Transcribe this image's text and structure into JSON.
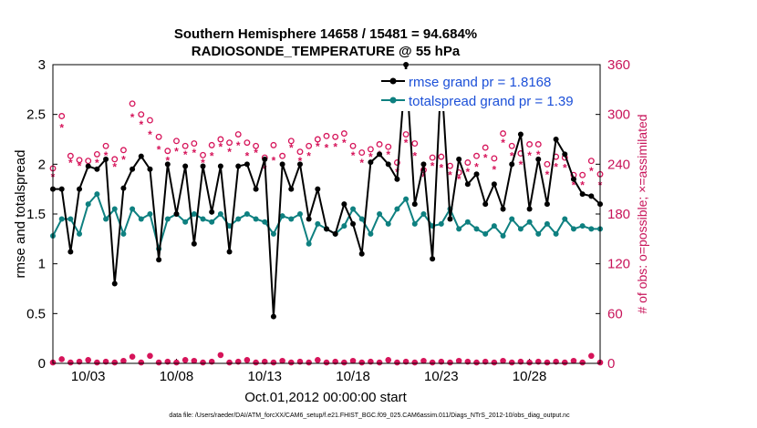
{
  "chart_data": {
    "type": "line",
    "title_line1": "Southern Hemisphere 14658 / 15481 = 94.684%",
    "title_line2": "RADIOSONDE_TEMPERATURE @ 55 hPa",
    "xlabel": "Oct.01,2012 00:00:00 start",
    "ylabel": "rmse and totalspread",
    "ylabel_right": "# of obs: o=possible; ×=assimilated",
    "x_ticks": [
      "10/03",
      "10/08",
      "10/13",
      "10/18",
      "10/23",
      "10/28"
    ],
    "x_tick_days": [
      3,
      8,
      13,
      18,
      23,
      28
    ],
    "xlim": [
      1,
      32
    ],
    "ylim": [
      0,
      3
    ],
    "y_ticks": [
      "0",
      "0.5",
      "1",
      "1.5",
      "2",
      "2.5",
      "3"
    ],
    "y_tick_values": [
      0,
      0.5,
      1,
      1.5,
      2,
      2.5,
      3
    ],
    "ylim_right": [
      0,
      360
    ],
    "y_ticks_right": [
      "0",
      "60",
      "120",
      "180",
      "240",
      "300",
      "360"
    ],
    "y_tick_values_right": [
      0,
      60,
      120,
      180,
      240,
      300,
      360
    ],
    "legend": [
      "rmse grand pr = 1.8168",
      "totalspread grand pr = 1.39"
    ],
    "colors": {
      "rmse": "#000000",
      "spread": "#0e8080",
      "obs": "#d6145a"
    },
    "series": [
      {
        "name": "rmse",
        "x": [
          1.0,
          1.5,
          2.0,
          2.5,
          3.0,
          3.5,
          4.0,
          4.5,
          5.0,
          5.5,
          6.0,
          6.5,
          7.0,
          7.5,
          8.0,
          8.5,
          9.0,
          9.5,
          10.0,
          10.5,
          11.0,
          11.5,
          12.0,
          12.5,
          13.0,
          13.5,
          14.0,
          14.5,
          15.0,
          15.5,
          16.0,
          16.5,
          17.0,
          17.5,
          18.0,
          18.5,
          19.0,
          19.5,
          20.0,
          20.5,
          21.0,
          21.5,
          22.0,
          22.5,
          23.0,
          23.5,
          24.0,
          24.5,
          25.0,
          25.5,
          26.0,
          26.5,
          27.0,
          27.5,
          28.0,
          28.5,
          29.0,
          29.5,
          30.0,
          30.5,
          31.0,
          31.5,
          32.0
        ],
        "values": [
          1.75,
          1.75,
          1.12,
          1.75,
          1.98,
          1.95,
          2.05,
          0.8,
          1.76,
          1.95,
          2.08,
          1.95,
          1.04,
          2.0,
          1.5,
          1.98,
          1.2,
          1.98,
          1.52,
          1.98,
          1.12,
          1.98,
          2.0,
          1.75,
          2.05,
          0.47,
          2.0,
          1.75,
          2.0,
          1.45,
          1.75,
          1.35,
          1.3,
          1.6,
          1.4,
          1.1,
          2.02,
          2.1,
          2.0,
          1.85,
          3.0,
          1.6,
          2.0,
          1.05,
          2.9,
          1.45,
          2.05,
          1.8,
          1.9,
          1.6,
          1.8,
          1.55,
          2.0,
          2.3,
          1.55,
          2.05,
          1.6,
          2.25,
          2.1,
          1.85,
          1.7,
          1.68,
          1.6
        ]
      },
      {
        "name": "totalspread",
        "x": [
          1.0,
          1.5,
          2.0,
          2.5,
          3.0,
          3.5,
          4.0,
          4.5,
          5.0,
          5.5,
          6.0,
          6.5,
          7.0,
          7.5,
          8.0,
          8.5,
          9.0,
          9.5,
          10.0,
          10.5,
          11.0,
          11.5,
          12.0,
          12.5,
          13.0,
          13.5,
          14.0,
          14.5,
          15.0,
          15.5,
          16.0,
          16.5,
          17.0,
          17.5,
          18.0,
          18.5,
          19.0,
          19.5,
          20.0,
          20.5,
          21.0,
          21.5,
          22.0,
          22.5,
          23.0,
          23.5,
          24.0,
          24.5,
          25.0,
          25.5,
          26.0,
          26.5,
          27.0,
          27.5,
          28.0,
          28.5,
          29.0,
          29.5,
          30.0,
          30.5,
          31.0,
          31.5,
          32.0
        ],
        "values": [
          1.28,
          1.45,
          1.45,
          1.3,
          1.6,
          1.7,
          1.45,
          1.55,
          1.3,
          1.55,
          1.45,
          1.5,
          1.15,
          1.45,
          1.5,
          1.42,
          1.5,
          1.45,
          1.42,
          1.5,
          1.38,
          1.45,
          1.5,
          1.45,
          1.42,
          1.3,
          1.48,
          1.45,
          1.5,
          1.2,
          1.4,
          1.35,
          1.3,
          1.38,
          1.55,
          1.45,
          1.3,
          1.5,
          1.4,
          1.55,
          1.65,
          1.4,
          1.5,
          1.38,
          1.4,
          1.55,
          1.35,
          1.42,
          1.35,
          1.3,
          1.38,
          1.28,
          1.45,
          1.35,
          1.42,
          1.3,
          1.4,
          1.3,
          1.45,
          1.35,
          1.38,
          1.35,
          1.35
        ]
      },
      {
        "name": "obs possible",
        "x": [
          1.0,
          1.5,
          2.0,
          2.5,
          3.0,
          3.5,
          4.0,
          4.5,
          5.0,
          5.5,
          6.0,
          6.5,
          7.0,
          7.5,
          8.0,
          8.5,
          9.0,
          9.5,
          10.0,
          10.5,
          11.0,
          11.5,
          12.0,
          12.5,
          13.0,
          13.5,
          14.0,
          14.5,
          15.0,
          15.5,
          16.0,
          16.5,
          17.0,
          17.5,
          18.0,
          18.5,
          19.0,
          19.5,
          20.0,
          20.5,
          21.0,
          21.5,
          22.0,
          22.5,
          23.0,
          23.5,
          24.0,
          24.5,
          25.0,
          25.5,
          26.0,
          26.5,
          27.0,
          27.5,
          28.0,
          28.5,
          29.0,
          29.5,
          30.0,
          30.5,
          31.0,
          31.5,
          32.0
        ],
        "values": [
          235,
          298,
          250,
          245,
          244,
          252,
          262,
          246,
          257,
          313,
          300,
          293,
          273,
          256,
          268,
          262,
          265,
          251,
          263,
          270,
          266,
          276,
          266,
          262,
          248,
          263,
          250,
          268,
          255,
          262,
          270,
          274,
          273,
          277,
          262,
          254,
          258,
          264,
          261,
          242,
          276,
          265,
          233,
          248,
          249,
          238,
          230,
          242,
          250,
          260,
          247,
          277,
          262,
          253,
          264,
          264,
          240,
          249,
          248,
          227,
          227,
          244,
          228
        ]
      },
      {
        "name": "obs assimilated",
        "x": [
          1.0,
          1.5,
          2.0,
          2.5,
          3.0,
          3.5,
          4.0,
          4.5,
          5.0,
          5.5,
          6.0,
          6.5,
          7.0,
          7.5,
          8.0,
          8.5,
          9.0,
          9.5,
          10.0,
          10.5,
          11.0,
          11.5,
          12.0,
          12.5,
          13.0,
          13.5,
          14.0,
          14.5,
          15.0,
          15.5,
          16.0,
          16.5,
          17.0,
          17.5,
          18.0,
          18.5,
          19.0,
          19.5,
          20.0,
          20.5,
          21.0,
          21.5,
          22.0,
          22.5,
          23.0,
          23.5,
          24.0,
          24.5,
          25.0,
          25.5,
          26.0,
          26.5,
          27.0,
          27.5,
          28.0,
          28.5,
          29.0,
          29.5,
          30.0,
          30.5,
          31.0,
          31.5,
          32.0
        ],
        "values": [
          225,
          284,
          242,
          238,
          237,
          242,
          251,
          237,
          246,
          297,
          288,
          276,
          258,
          245,
          256,
          252,
          254,
          242,
          250,
          261,
          255,
          263,
          250,
          254,
          235,
          245,
          238,
          260,
          244,
          250,
          262,
          260,
          261,
          266,
          251,
          242,
          249,
          252,
          252,
          231,
          266,
          250,
          225,
          238,
          236,
          227,
          222,
          231,
          237,
          248,
          234,
          266,
          250,
          240,
          251,
          252,
          228,
          237,
          236,
          215,
          215,
          232,
          215
        ]
      },
      {
        "name": "obs near zero",
        "x": [
          1.0,
          1.5,
          2.0,
          2.5,
          3.0,
          3.5,
          4.0,
          4.5,
          5.0,
          5.5,
          6.0,
          6.5,
          7.0,
          7.5,
          8.0,
          8.5,
          9.0,
          9.5,
          10.0,
          10.5,
          11.0,
          11.5,
          12.0,
          12.5,
          13.0,
          13.5,
          14.0,
          14.5,
          15.0,
          15.5,
          16.0,
          16.5,
          17.0,
          17.5,
          18.0,
          18.5,
          19.0,
          19.5,
          20.0,
          20.5,
          21.0,
          21.5,
          22.0,
          22.5,
          23.0,
          23.5,
          24.0,
          24.5,
          25.0,
          25.5,
          26.0,
          26.5,
          27.0,
          27.5,
          28.0,
          28.5,
          29.0,
          29.5,
          30.0,
          30.5,
          31.0,
          31.5,
          32.0
        ],
        "values": [
          1,
          5,
          1,
          2,
          4,
          1,
          2,
          1,
          3,
          8,
          1,
          9,
          1,
          2,
          1,
          4,
          3,
          1,
          2,
          10,
          1,
          2,
          4,
          1,
          2,
          1,
          3,
          1,
          2,
          1,
          4,
          1,
          2,
          1,
          3,
          1,
          2,
          1,
          4,
          1,
          2,
          1,
          3,
          1,
          2,
          1,
          3,
          2,
          1,
          2,
          1,
          3,
          1,
          2,
          1,
          2,
          1,
          2,
          1,
          3,
          1,
          9,
          1
        ]
      }
    ]
  },
  "footer": "data file: /Users/raeder/DAI/ATM_forcXX/CAM6_setup/f.e21.FHIST_BGC.f09_025.CAM6assim.011/Diags_NTrS_2012-10/obs_diag_output.nc"
}
